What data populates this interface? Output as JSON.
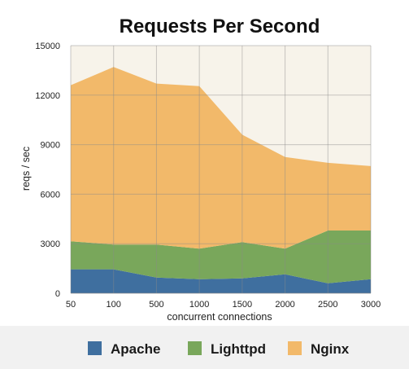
{
  "chart_data": {
    "type": "area",
    "stacked": true,
    "title": "Requests Per Second",
    "xlabel": "concurrent connections",
    "ylabel": "reqs / sec",
    "categories": [
      "50",
      "100",
      "500",
      "1000",
      "1500",
      "2000",
      "2500",
      "3000"
    ],
    "ylim": [
      0,
      15000
    ],
    "yticks": [
      "0",
      "3000",
      "6000",
      "9000",
      "12000",
      "15000"
    ],
    "grid": true,
    "legend_position": "bottom",
    "series": [
      {
        "name": "Apache",
        "color": "#3f6f9f",
        "values": [
          1450,
          1450,
          950,
          850,
          900,
          1150,
          600,
          850
        ]
      },
      {
        "name": "Lighttpd",
        "color": "#79a75b",
        "values": [
          1700,
          1500,
          2000,
          1850,
          2200,
          1550,
          3200,
          2950
        ]
      },
      {
        "name": "Nginx",
        "color": "#f2b96a",
        "values": [
          9450,
          10750,
          9750,
          9850,
          6500,
          5550,
          4100,
          3900
        ]
      }
    ]
  }
}
